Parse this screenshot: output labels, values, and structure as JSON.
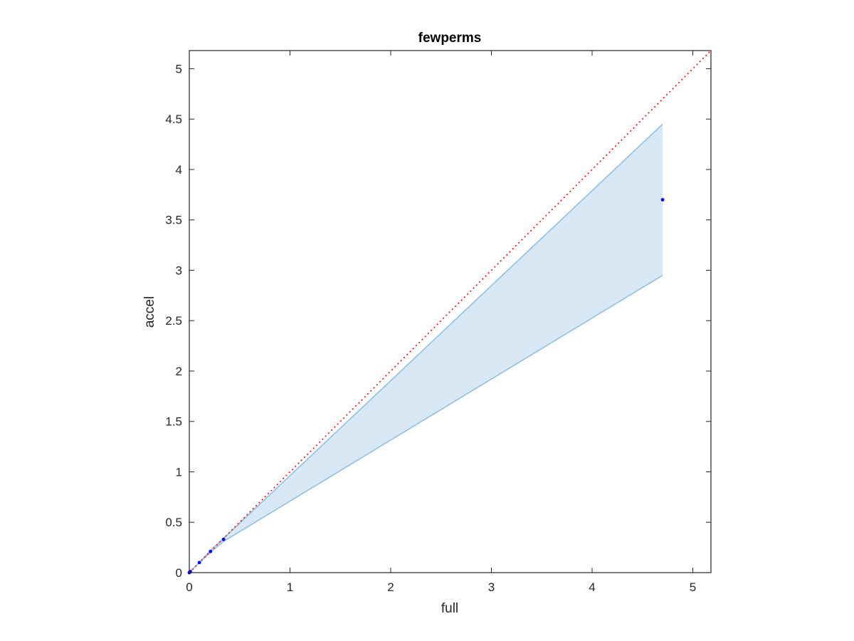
{
  "chart_data": {
    "type": "line",
    "title": "fewperms",
    "xlabel": "full",
    "ylabel": "accel",
    "xlim": [
      0,
      5.18
    ],
    "ylim": [
      0,
      5.18
    ],
    "xticks": [
      "0",
      "1",
      "2",
      "3",
      "4",
      "5"
    ],
    "yticks": [
      "0",
      "0.5",
      "1",
      "1.5",
      "2",
      "2.5",
      "3",
      "3.5",
      "4",
      "4.5",
      "5"
    ],
    "grid": false,
    "points": {
      "x": [
        0.0,
        0.005,
        0.01,
        0.1,
        0.21,
        0.34,
        4.7
      ],
      "y": [
        0.0,
        0.005,
        0.01,
        0.1,
        0.21,
        0.33,
        3.7
      ],
      "color": "#0000ff"
    },
    "band": {
      "x": [
        0.0,
        0.005,
        0.01,
        0.1,
        0.21,
        0.34,
        4.7
      ],
      "upper": [
        0.0,
        0.005,
        0.01,
        0.1,
        0.22,
        0.34,
        4.45
      ],
      "lower": [
        0.0,
        0.005,
        0.01,
        0.1,
        0.2,
        0.31,
        2.95
      ],
      "fill_color": "#d9e8f5",
      "edge_color": "#8fc1e4"
    },
    "reference_line": {
      "x": [
        0,
        5.18
      ],
      "y": [
        0,
        5.18
      ],
      "color": "#ff0000",
      "style": "dotted"
    }
  }
}
